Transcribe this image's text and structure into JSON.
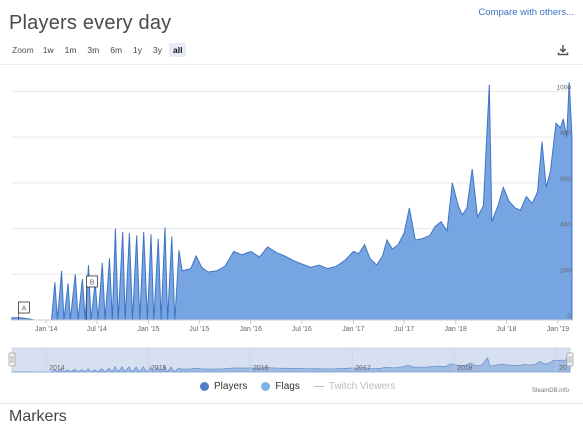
{
  "header": {
    "title": "Players every day",
    "compare_link": "Compare with others..."
  },
  "zoom": {
    "label": "Zoom",
    "buttons": [
      "1w",
      "1m",
      "3m",
      "6m",
      "1y",
      "3y",
      "all"
    ],
    "active": "all"
  },
  "icons": {
    "download": "download-icon"
  },
  "chart_data": {
    "type": "area",
    "series": [
      {
        "name": "Players",
        "color": "#5b8fd6",
        "points": [
          [
            "2013-09-01",
            10
          ],
          [
            "2013-10-01",
            10
          ],
          [
            "2013-11-01",
            5
          ],
          [
            "2013-11-20",
            0
          ],
          [
            "2013-12-10",
            0
          ],
          [
            "2014-01-20",
            0
          ],
          [
            "2014-02-01",
            165
          ],
          [
            "2014-02-10",
            0
          ],
          [
            "2014-02-25",
            215
          ],
          [
            "2014-03-05",
            0
          ],
          [
            "2014-03-20",
            160
          ],
          [
            "2014-03-28",
            0
          ],
          [
            "2014-04-15",
            200
          ],
          [
            "2014-04-25",
            0
          ],
          [
            "2014-05-10",
            180
          ],
          [
            "2014-05-20",
            0
          ],
          [
            "2014-06-01",
            240
          ],
          [
            "2014-06-10",
            0
          ],
          [
            "2014-06-25",
            165
          ],
          [
            "2014-07-05",
            0
          ],
          [
            "2014-07-20",
            250
          ],
          [
            "2014-07-30",
            0
          ],
          [
            "2014-08-15",
            270
          ],
          [
            "2014-08-25",
            0
          ],
          [
            "2014-09-05",
            400
          ],
          [
            "2014-09-15",
            0
          ],
          [
            "2014-10-01",
            385
          ],
          [
            "2014-10-10",
            0
          ],
          [
            "2014-10-25",
            380
          ],
          [
            "2014-11-05",
            0
          ],
          [
            "2014-11-20",
            370
          ],
          [
            "2014-12-01",
            0
          ],
          [
            "2014-12-15",
            385
          ],
          [
            "2014-12-28",
            0
          ],
          [
            "2015-01-10",
            375
          ],
          [
            "2015-01-20",
            0
          ],
          [
            "2015-02-05",
            355
          ],
          [
            "2015-02-15",
            0
          ],
          [
            "2015-03-01",
            405
          ],
          [
            "2015-03-10",
            0
          ],
          [
            "2015-03-25",
            365
          ],
          [
            "2015-04-05",
            0
          ],
          [
            "2015-04-20",
            305
          ],
          [
            "2015-05-01",
            215
          ],
          [
            "2015-06-01",
            225
          ],
          [
            "2015-06-20",
            280
          ],
          [
            "2015-07-10",
            230
          ],
          [
            "2015-08-01",
            210
          ],
          [
            "2015-09-01",
            215
          ],
          [
            "2015-10-01",
            235
          ],
          [
            "2015-11-01",
            300
          ],
          [
            "2015-12-01",
            285
          ],
          [
            "2016-01-01",
            300
          ],
          [
            "2016-02-01",
            275
          ],
          [
            "2016-03-01",
            320
          ],
          [
            "2016-04-01",
            295
          ],
          [
            "2016-05-01",
            280
          ],
          [
            "2016-06-01",
            260
          ],
          [
            "2016-07-01",
            245
          ],
          [
            "2016-08-01",
            230
          ],
          [
            "2016-09-01",
            240
          ],
          [
            "2016-10-01",
            225
          ],
          [
            "2016-11-01",
            235
          ],
          [
            "2016-12-01",
            260
          ],
          [
            "2017-01-01",
            300
          ],
          [
            "2017-01-20",
            290
          ],
          [
            "2017-02-10",
            330
          ],
          [
            "2017-03-01",
            270
          ],
          [
            "2017-03-25",
            240
          ],
          [
            "2017-04-15",
            280
          ],
          [
            "2017-05-01",
            350
          ],
          [
            "2017-05-20",
            310
          ],
          [
            "2017-06-10",
            330
          ],
          [
            "2017-07-01",
            380
          ],
          [
            "2017-07-20",
            490
          ],
          [
            "2017-08-10",
            350
          ],
          [
            "2017-09-01",
            355
          ],
          [
            "2017-10-01",
            370
          ],
          [
            "2017-10-20",
            410
          ],
          [
            "2017-11-10",
            430
          ],
          [
            "2017-12-01",
            390
          ],
          [
            "2017-12-20",
            600
          ],
          [
            "2018-01-10",
            500
          ],
          [
            "2018-01-25",
            460
          ],
          [
            "2018-02-10",
            490
          ],
          [
            "2018-03-01",
            660
          ],
          [
            "2018-03-20",
            450
          ],
          [
            "2018-04-10",
            500
          ],
          [
            "2018-05-01",
            1030
          ],
          [
            "2018-05-10",
            430
          ],
          [
            "2018-06-01",
            500
          ],
          [
            "2018-06-20",
            580
          ],
          [
            "2018-07-10",
            520
          ],
          [
            "2018-08-01",
            490
          ],
          [
            "2018-08-20",
            480
          ],
          [
            "2018-09-10",
            540
          ],
          [
            "2018-10-01",
            510
          ],
          [
            "2018-10-20",
            560
          ],
          [
            "2018-11-05",
            780
          ],
          [
            "2018-11-20",
            580
          ],
          [
            "2018-12-05",
            650
          ],
          [
            "2018-12-25",
            860
          ],
          [
            "2019-01-10",
            840
          ],
          [
            "2019-01-20",
            880
          ],
          [
            "2019-02-01",
            800
          ],
          [
            "2019-02-10",
            1040
          ],
          [
            "2019-02-20",
            800
          ]
        ]
      },
      {
        "name": "Flags",
        "color": "#7fb1e6"
      },
      {
        "name": "Twitch Viewers",
        "color": "#bbbbbb"
      }
    ],
    "x_ticks": [
      "Jan '14",
      "Jul '14",
      "Jan '15",
      "Jul '15",
      "Jan '16",
      "Jul '16",
      "Jan '17",
      "Jul '17",
      "Jan '18",
      "Jul '18",
      "Jan '19"
    ],
    "y_ticks": [
      "0",
      "200",
      "400",
      "600",
      "800",
      "1000"
    ],
    "ylim": [
      0,
      1050
    ],
    "navigator_years": [
      "2014",
      "2015",
      "2016",
      "2017",
      "2018",
      "20"
    ],
    "flags": [
      {
        "label": "A",
        "date": "2013-10-01"
      },
      {
        "label": "B",
        "date": "2014-06-01"
      }
    ],
    "grid": true
  },
  "legend": {
    "items": [
      "Players",
      "Flags",
      "Twitch Viewers"
    ]
  },
  "credit": "SteamDB.info",
  "section_title": "Markers"
}
